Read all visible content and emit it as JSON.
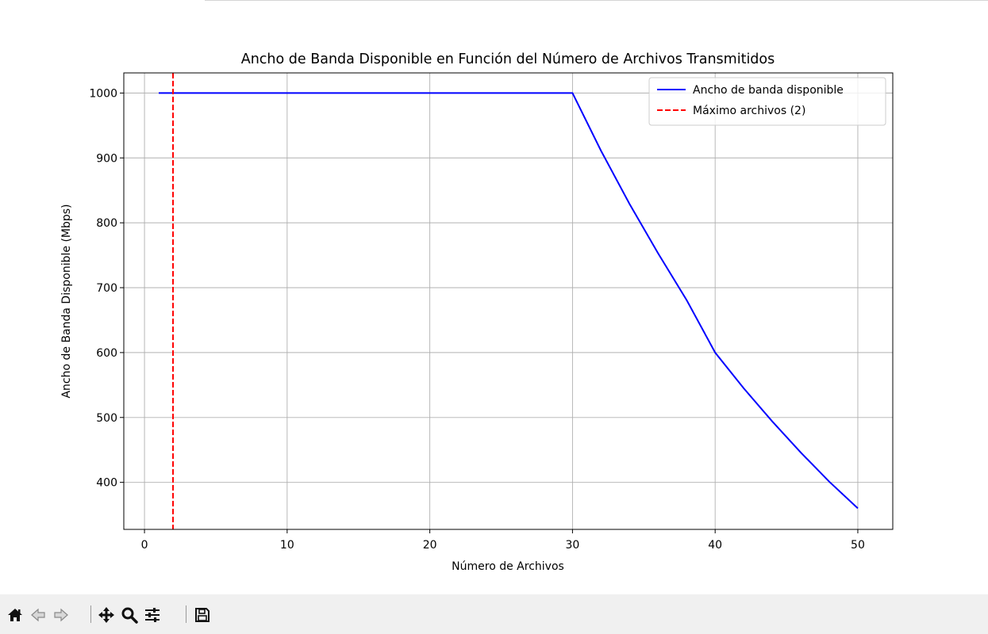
{
  "chart_data": {
    "type": "line",
    "title": "Ancho de Banda Disponible en Función del Número de Archivos Transmitidos",
    "xlabel": "Número de Archivos",
    "ylabel": "Ancho de Banda Disponible (Mbps)",
    "xlim": [
      -1.45,
      52.45
    ],
    "ylim": [
      327.5,
      1031
    ],
    "xticks": [
      0,
      10,
      20,
      30,
      40,
      50
    ],
    "yticks": [
      400,
      500,
      600,
      700,
      800,
      900,
      1000
    ],
    "grid": true,
    "legend_position": "upper right",
    "series": [
      {
        "name": "Ancho de banda disponible",
        "color": "#0000ff",
        "style": "solid",
        "x": [
          1,
          30,
          32,
          34,
          36,
          38,
          40,
          42,
          44,
          46,
          48,
          50
        ],
        "y": [
          1000,
          1000,
          911,
          829,
          753,
          681,
          600,
          545,
          494,
          446,
          401,
          360
        ]
      }
    ],
    "vlines": [
      {
        "name": "Máximo archivos (2)",
        "x": 2,
        "color": "#ff0000",
        "style": "dashed"
      }
    ]
  },
  "toolbar": {
    "buttons": [
      {
        "name": "home-button",
        "icon": "home-icon"
      },
      {
        "name": "back-button",
        "icon": "arrow-left-icon"
      },
      {
        "name": "forward-button",
        "icon": "arrow-right-icon"
      },
      {
        "name": "pan-button",
        "icon": "move-icon"
      },
      {
        "name": "zoom-button",
        "icon": "magnifier-icon"
      },
      {
        "name": "configure-subplots-button",
        "icon": "sliders-icon"
      },
      {
        "name": "save-button",
        "icon": "floppy-disk-icon"
      }
    ]
  }
}
